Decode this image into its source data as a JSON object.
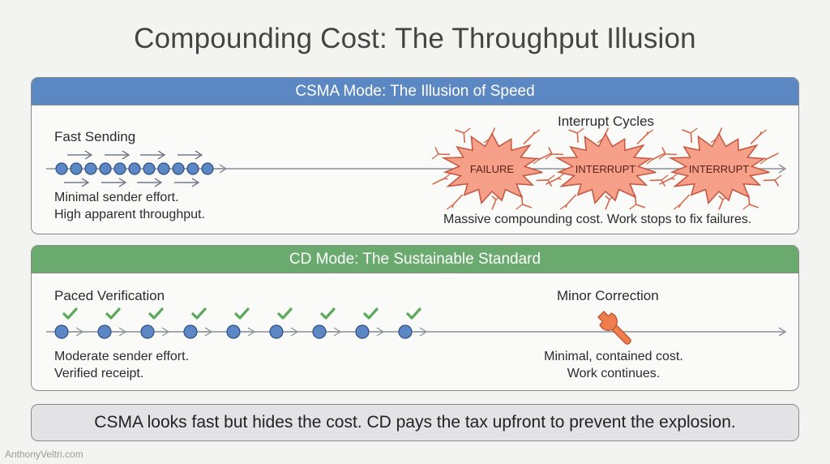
{
  "title": "Compounding Cost: The Throughput Illusion",
  "csma": {
    "header": "CSMA Mode: The Illusion of Speed",
    "left_label": "Fast Sending",
    "left_caption_1": "Minimal sender effort.",
    "left_caption_2": "High apparent throughput.",
    "right_label": "Interrupt Cycles",
    "bursts": [
      "FAILURE",
      "INTERRUPT",
      "INTERRUPT"
    ],
    "right_caption": "Massive compounding cost. Work stops to fix failures."
  },
  "cd": {
    "header": "CD Mode: The Sustainable Standard",
    "left_label": "Paced Verification",
    "left_caption_1": "Moderate sender effort.",
    "left_caption_2": "Verified receipt.",
    "right_label": "Minor Correction",
    "right_caption_1": "Minimal, contained cost.",
    "right_caption_2": "Work continues."
  },
  "footer": "CSMA looks fast but hides the cost. CD pays the tax upfront to prevent the explosion.",
  "watermark": "AnthonyVeltri.com",
  "colors": {
    "csma_header": "#5b88c2",
    "cd_header": "#6aaa6e",
    "packet": "#5b87c5",
    "check": "#5aa85a",
    "burst_fill": "#f6a08a",
    "crack": "#d8664a",
    "wrench": "#ef7d4d"
  }
}
